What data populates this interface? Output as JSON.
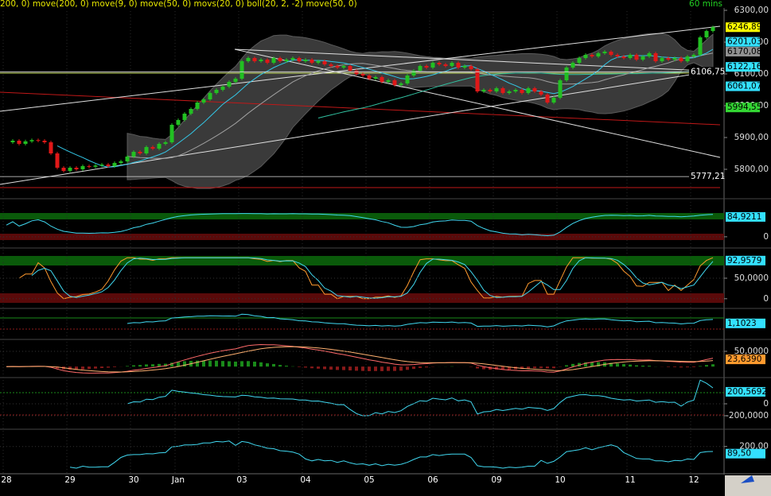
{
  "chart_data": [
    {
      "type": "candlestick",
      "title": "200, 0) move(200, 0) move(9, 0) move(50, 0) movs(20, 0) boll(20, 2, -2) move(50, 0)",
      "timeframe": "60 mins",
      "categories": [
        "28",
        null,
        null,
        null,
        null,
        null,
        null,
        null,
        null,
        null,
        "29",
        null,
        null,
        null,
        null,
        null,
        null,
        null,
        null,
        null,
        "30",
        null,
        null,
        null,
        null,
        null,
        null,
        "Jan",
        null,
        null,
        null,
        null,
        null,
        null,
        null,
        null,
        null,
        "03",
        null,
        null,
        null,
        null,
        null,
        null,
        null,
        null,
        null,
        "04",
        null,
        null,
        null,
        null,
        null,
        null,
        null,
        null,
        null,
        "05",
        null,
        null,
        null,
        null,
        null,
        null,
        null,
        null,
        null,
        "06",
        null,
        null,
        null,
        null,
        null,
        null,
        null,
        null,
        null,
        "09",
        null,
        null,
        null,
        null,
        null,
        null,
        null,
        null,
        null,
        "10",
        null,
        null,
        null,
        null,
        null,
        null,
        null,
        null,
        null,
        null,
        "11",
        null,
        null,
        null,
        null,
        null,
        null,
        null,
        null,
        null,
        "12",
        null,
        null,
        null
      ],
      "close": [
        5885,
        5890,
        5880,
        5888,
        5892,
        5890,
        5885,
        5850,
        5805,
        5795,
        5805,
        5800,
        5810,
        5808,
        5812,
        5815,
        5810,
        5820,
        5825,
        5840,
        5855,
        5850,
        5870,
        5865,
        5880,
        5885,
        5940,
        5955,
        5975,
        5990,
        6010,
        6020,
        6040,
        6050,
        6060,
        6075,
        6085,
        6140,
        6150,
        6140,
        6145,
        6135,
        6150,
        6140,
        6145,
        6150,
        6140,
        6145,
        6135,
        6140,
        6130,
        6125,
        6120,
        6125,
        6110,
        6100,
        6095,
        6085,
        6090,
        6075,
        6080,
        6065,
        6070,
        6095,
        6110,
        6125,
        6120,
        6135,
        6130,
        6125,
        6135,
        6120,
        6125,
        6115,
        6045,
        6050,
        6045,
        6055,
        6040,
        6045,
        6050,
        6040,
        6055,
        6045,
        6035,
        6010,
        6025,
        6080,
        6120,
        6135,
        6150,
        6160,
        6155,
        6165,
        6170,
        6160,
        6155,
        6150,
        6160,
        6145,
        6155,
        6165,
        6140,
        6150,
        6145,
        6150,
        6140,
        6155,
        6160,
        6215,
        6235,
        6247
      ],
      "up_color": "#22c022",
      "down_color": "#e01818",
      "ylim": [
        5720,
        6302.5
      ],
      "yticks": [
        {
          "value": 6300,
          "label": "6300,00"
        },
        {
          "value": 6200,
          "label": "6200,00"
        },
        {
          "value": 6100,
          "label": "6100,00"
        },
        {
          "value": 6000,
          "label": "6000,00"
        },
        {
          "value": 5900,
          "label": "5900,00"
        },
        {
          "value": 5800,
          "label": "5800,00"
        }
      ],
      "price_labels": [
        {
          "value": 6246.89,
          "label": "6246,89",
          "color": "#ffff00"
        },
        {
          "value": 6201.03,
          "label": "6201,03",
          "color": "#33e0ff"
        },
        {
          "value": 6170.08,
          "label": "6170,08",
          "color": "#909090"
        },
        {
          "value": 6106.75,
          "label": "6106,75",
          "color": "#000000"
        },
        {
          "value": 6122.16,
          "label": "6122,16",
          "color": "#33e0ff"
        },
        {
          "value": 6061.07,
          "label": "6061,07",
          "color": "#33e0ff"
        },
        {
          "value": 5994.55,
          "label": "5994,55",
          "color": "#33d633"
        },
        {
          "value": 5777.21,
          "label": "5777,21",
          "color": "#000000"
        }
      ]
    },
    {
      "type": "line",
      "ylim": [
        -14,
        122
      ],
      "yticks": [
        0
      ],
      "value_label": {
        "value": 84.9211,
        "label": "84,9211",
        "color": "#33e0ff"
      }
    },
    {
      "type": "line",
      "ylim": [
        -12,
        112
      ],
      "yticks": [
        {
          "value": 50,
          "label": "50,0000"
        },
        0
      ],
      "value_label": {
        "value": 92.9579,
        "label": "92,9579",
        "color": "#33e0ff"
      }
    },
    {
      "type": "line",
      "ylim": [
        0.9,
        1.3
      ],
      "yticks": [],
      "value_label": {
        "value": 1.1023,
        "label": "1,1023",
        "color": "#33e0ff"
      }
    },
    {
      "type": "line",
      "ylim": [
        -23,
        76
      ],
      "yticks": [
        {
          "value": 50,
          "label": "50,0000"
        }
      ],
      "value_label": {
        "value": 23.639,
        "label": "23,6390",
        "color": "#ff9a2e"
      }
    },
    {
      "type": "line",
      "ylim": [
        -360,
        373
      ],
      "yticks": [
        0,
        {
          "value": -200,
          "label": "-200,0000"
        }
      ],
      "value_label": {
        "value": 200.5692,
        "label": "200,5692",
        "color": "#33e0ff"
      }
    },
    {
      "type": "line",
      "ylim": [
        -172,
        405
      ],
      "yticks": [
        {
          "value": 200,
          "label": "200,00"
        }
      ],
      "value_label": {
        "value": 89.5,
        "label": "89,50",
        "color": "#33e0ff"
      }
    }
  ]
}
